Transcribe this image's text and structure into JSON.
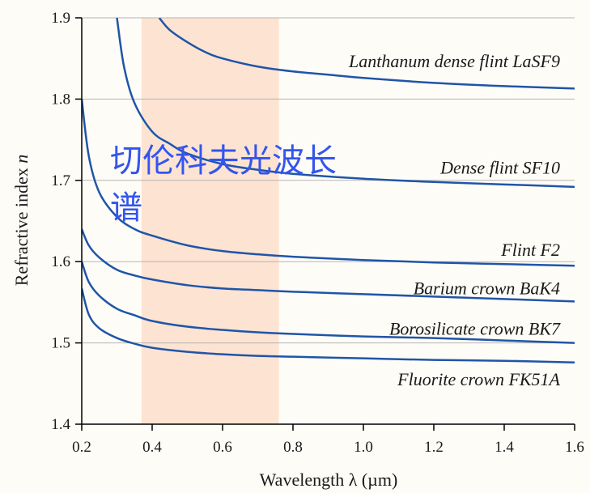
{
  "chart_data": {
    "type": "line",
    "title": "",
    "xlabel": "Wavelength λ (µm)",
    "ylabel_text": "Refractive index ",
    "ylabel_var": "n",
    "xlim": [
      0.2,
      1.6
    ],
    "ylim": [
      1.4,
      1.9
    ],
    "xticks": [
      "0.2",
      "0.4",
      "0.6",
      "0.8",
      "1.0",
      "1.2",
      "1.4",
      "1.6"
    ],
    "yticks": [
      "1.4",
      "1.5",
      "1.6",
      "1.7",
      "1.8",
      "1.9"
    ],
    "grid": "horizontal",
    "highlight_band": {
      "x_range": [
        0.37,
        0.76
      ],
      "color": "#fde3d2"
    },
    "line_color": "#1f55a8",
    "series": [
      {
        "name": "Lanthanum dense flint LaSF9",
        "x": [
          0.42,
          0.45,
          0.5,
          0.55,
          0.6,
          0.7,
          0.8,
          0.9,
          1.0,
          1.2,
          1.4,
          1.6
        ],
        "y": [
          1.9,
          1.885,
          1.87,
          1.858,
          1.85,
          1.84,
          1.834,
          1.83,
          1.826,
          1.82,
          1.816,
          1.813
        ]
      },
      {
        "name": "Dense flint SF10",
        "x": [
          0.3,
          0.32,
          0.35,
          0.4,
          0.45,
          0.5,
          0.6,
          0.7,
          0.8,
          1.0,
          1.2,
          1.4,
          1.6
        ],
        "y": [
          1.9,
          1.84,
          1.795,
          1.76,
          1.745,
          1.733,
          1.72,
          1.713,
          1.708,
          1.702,
          1.698,
          1.695,
          1.692
        ]
      },
      {
        "name": "Flint F2",
        "x": [
          0.2,
          0.22,
          0.25,
          0.3,
          0.35,
          0.4,
          0.5,
          0.6,
          0.7,
          0.8,
          1.0,
          1.2,
          1.4,
          1.6
        ],
        "y": [
          1.8,
          1.73,
          1.685,
          1.655,
          1.64,
          1.632,
          1.62,
          1.613,
          1.609,
          1.606,
          1.602,
          1.599,
          1.597,
          1.595
        ]
      },
      {
        "name": "Barium crown BaK4",
        "x": [
          0.2,
          0.22,
          0.25,
          0.3,
          0.35,
          0.4,
          0.5,
          0.6,
          0.7,
          0.8,
          1.0,
          1.2,
          1.4,
          1.6
        ],
        "y": [
          1.64,
          1.62,
          1.605,
          1.59,
          1.583,
          1.578,
          1.571,
          1.567,
          1.565,
          1.563,
          1.56,
          1.557,
          1.554,
          1.551
        ]
      },
      {
        "name": "Borosilicate crown BK7",
        "x": [
          0.2,
          0.22,
          0.25,
          0.3,
          0.35,
          0.4,
          0.5,
          0.6,
          0.7,
          0.8,
          1.0,
          1.2,
          1.4,
          1.6
        ],
        "y": [
          1.6,
          1.575,
          1.558,
          1.542,
          1.534,
          1.527,
          1.52,
          1.516,
          1.513,
          1.511,
          1.508,
          1.506,
          1.503,
          1.5
        ]
      },
      {
        "name": "Fluorite crown FK51A",
        "x": [
          0.2,
          0.22,
          0.25,
          0.3,
          0.35,
          0.4,
          0.5,
          0.6,
          0.7,
          0.8,
          1.0,
          1.2,
          1.4,
          1.6
        ],
        "y": [
          1.567,
          1.535,
          1.518,
          1.506,
          1.499,
          1.494,
          1.489,
          1.486,
          1.484,
          1.483,
          1.481,
          1.479,
          1.478,
          1.476
        ]
      }
    ],
    "series_labels": [
      {
        "text": "Lanthanum dense flint LaSF9",
        "x": 1.6,
        "y": 1.846
      },
      {
        "text": "Dense flint SF10",
        "x": 1.6,
        "y": 1.715
      },
      {
        "text": "Flint F2",
        "x": 1.6,
        "y": 1.614
      },
      {
        "text": "Barium crown BaK4",
        "x": 1.6,
        "y": 1.567
      },
      {
        "text": "Borosilicate crown BK7",
        "x": 1.6,
        "y": 1.517
      },
      {
        "text": "Fluorite crown FK51A",
        "x": 1.6,
        "y": 1.455
      }
    ]
  },
  "overlay": {
    "line1": "切伦科夫光波长",
    "line2": "谱",
    "color": "#3355ee"
  }
}
